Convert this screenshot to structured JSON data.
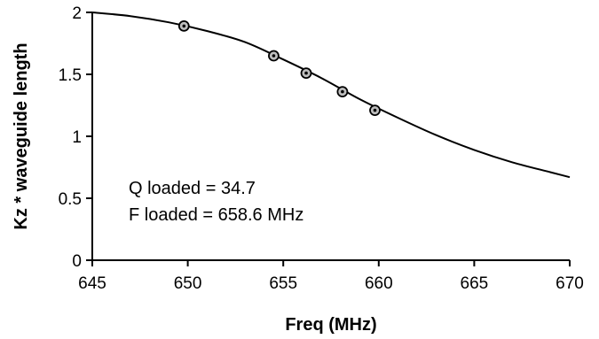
{
  "chart_data": {
    "type": "scatter",
    "title": "",
    "xlabel": "Freq (MHz)",
    "ylabel": "Kz * waveguide length",
    "xlim": [
      645,
      670
    ],
    "ylim": [
      0,
      2
    ],
    "grid": false,
    "x_ticks": [
      "645",
      "650",
      "655",
      "660",
      "665",
      "670"
    ],
    "y_ticks": [
      "0",
      "0.5",
      "1",
      "1.5",
      "2"
    ],
    "series": [
      {
        "kind": "measured-points",
        "x": [
          649.8,
          654.5,
          656.2,
          658.1,
          659.8
        ],
        "y": [
          1.89,
          1.65,
          1.51,
          1.36,
          1.21
        ]
      },
      {
        "kind": "fit-curve",
        "x": [
          645,
          647,
          649,
          651,
          653,
          655,
          657,
          659,
          661,
          663,
          665,
          667,
          669,
          670
        ],
        "y": [
          2.0,
          1.97,
          1.92,
          1.85,
          1.76,
          1.62,
          1.47,
          1.3,
          1.15,
          1.01,
          0.89,
          0.79,
          0.71,
          0.67
        ]
      }
    ],
    "annotations": [
      "Q loaded = 34.7",
      "F loaded = 658.6 MHz"
    ]
  }
}
